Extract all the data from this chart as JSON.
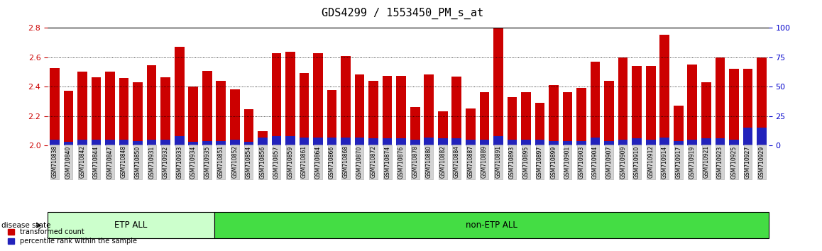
{
  "title": "GDS4299 / 1553450_PM_s_at",
  "samples": [
    "GSM710838",
    "GSM710840",
    "GSM710842",
    "GSM710844",
    "GSM710847",
    "GSM710848",
    "GSM710850",
    "GSM710931",
    "GSM710932",
    "GSM710933",
    "GSM710934",
    "GSM710935",
    "GSM710851",
    "GSM710852",
    "GSM710854",
    "GSM710856",
    "GSM710857",
    "GSM710859",
    "GSM710861",
    "GSM710864",
    "GSM710866",
    "GSM710868",
    "GSM710870",
    "GSM710872",
    "GSM710874",
    "GSM710876",
    "GSM710878",
    "GSM710880",
    "GSM710882",
    "GSM710884",
    "GSM710887",
    "GSM710889",
    "GSM710891",
    "GSM710893",
    "GSM710895",
    "GSM710897",
    "GSM710899",
    "GSM710901",
    "GSM710903",
    "GSM710904",
    "GSM710907",
    "GSM710909",
    "GSM710910",
    "GSM710912",
    "GSM710914",
    "GSM710917",
    "GSM710919",
    "GSM710921",
    "GSM710923",
    "GSM710925",
    "GSM710927",
    "GSM710929"
  ],
  "transformed_counts": [
    2.525,
    2.37,
    2.5,
    2.465,
    2.5,
    2.46,
    2.43,
    2.545,
    2.465,
    2.67,
    2.4,
    2.505,
    2.44,
    2.38,
    2.245,
    2.1,
    2.625,
    2.635,
    2.49,
    2.625,
    2.375,
    2.605,
    2.48,
    2.44,
    2.475,
    2.475,
    2.26,
    2.48,
    2.23,
    2.47,
    2.25,
    2.36,
    2.815,
    2.33,
    2.36,
    2.29,
    2.41,
    2.36,
    2.39,
    2.57,
    2.44,
    2.6,
    2.54,
    2.54,
    2.75,
    2.27,
    2.55,
    2.43,
    2.6,
    2.52,
    2.52,
    2.6
  ],
  "percentile_ranks_pct": [
    5,
    3,
    5,
    5,
    5,
    5,
    4,
    5,
    5,
    8,
    3,
    4,
    4,
    5,
    3,
    7,
    8,
    8,
    7,
    7,
    7,
    7,
    7,
    6,
    6,
    6,
    5,
    7,
    6,
    6,
    5,
    5,
    8,
    5,
    5,
    5,
    4,
    4,
    4,
    7,
    4,
    5,
    6,
    5,
    7,
    4,
    5,
    6,
    6,
    5,
    15,
    15
  ],
  "etp_count": 12,
  "ylim_left": [
    2.0,
    2.8
  ],
  "ylim_right": [
    0,
    100
  ],
  "yticks_left": [
    2.0,
    2.2,
    2.4,
    2.6,
    2.8
  ],
  "yticks_right": [
    0,
    25,
    50,
    75,
    100
  ],
  "bar_color": "#cc0000",
  "blue_color": "#2222bb",
  "etp_color": "#ccffcc",
  "non_etp_color": "#44dd44",
  "etp_label": "ETP ALL",
  "non_etp_label": "non-ETP ALL",
  "legend_red": "transformed count",
  "legend_blue": "percentile rank within the sample",
  "title_fontsize": 11,
  "tick_fontsize": 5.5,
  "left_tick_color": "#cc0000",
  "right_tick_color": "#0000cc",
  "background_color": "#ffffff"
}
